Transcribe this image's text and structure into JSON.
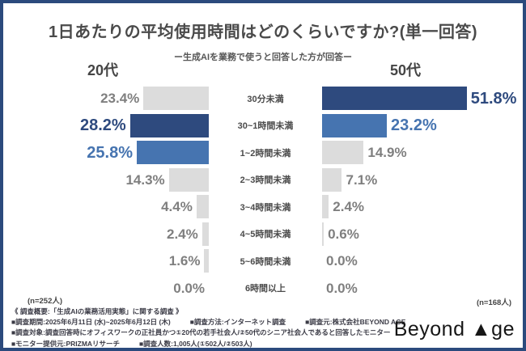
{
  "frame": {
    "border_color": "#2b4a7d",
    "background": "#ffffff"
  },
  "header": {
    "title": "1日あたりの平均使用時間はどのくらいですか?(単一回答)",
    "subtitle": "ー生成AIを業務で使うと回答した方が回答ー"
  },
  "chart_data": {
    "type": "bar",
    "orientation": "horizontal",
    "layout": "mirrored-comparison",
    "value_suffix": "%",
    "grid": false,
    "xlim": [
      0,
      60
    ],
    "categories": [
      "30分未満",
      "30~1時間未満",
      "1~2時間未満",
      "2~3時間未満",
      "3~4時間未満",
      "4~5時間未満",
      "5~6時間未満",
      "6時間以上"
    ],
    "series": [
      {
        "name": "20代",
        "n_label": "(n=252人)",
        "side": "left",
        "values": [
          23.4,
          28.2,
          25.8,
          14.3,
          4.4,
          2.4,
          1.6,
          0.0
        ],
        "emphasis": [
          "none",
          "primary",
          "secondary",
          "none",
          "none",
          "none",
          "none",
          "none"
        ]
      },
      {
        "name": "50代",
        "n_label": "(n=168人)",
        "side": "right",
        "values": [
          51.8,
          23.2,
          14.9,
          7.1,
          2.4,
          0.6,
          0.0,
          0.0
        ],
        "emphasis": [
          "primary",
          "secondary",
          "none",
          "none",
          "none",
          "none",
          "none",
          "none"
        ]
      }
    ],
    "palette": {
      "primary": "#2e4a7e",
      "secondary": "#4674b0",
      "none": "#dcdcdc",
      "value_text_default": "#7f7f7f"
    }
  },
  "footer": {
    "heading": "《 調査概要:「生成AIの業務活用実態」に関する調査 》",
    "lines": [
      [
        "■調査期間:2025年6月11日 (水)~2025年6月12日 (木)",
        "■調査方法:インターネット調査",
        "■調査元:株式会社BEYOND AGE"
      ],
      [
        "■調査対象:調査回答時にオフィスワークの正社員かつ①20代の若手社会人/②50代のシニア社会人であると回答したモニター"
      ],
      [
        "■モニター提供元:PRIZMAリサーチ",
        "■調査人数:1,005人(①502人/②503人)"
      ]
    ],
    "logo_text": "Beyond ▲ge"
  }
}
